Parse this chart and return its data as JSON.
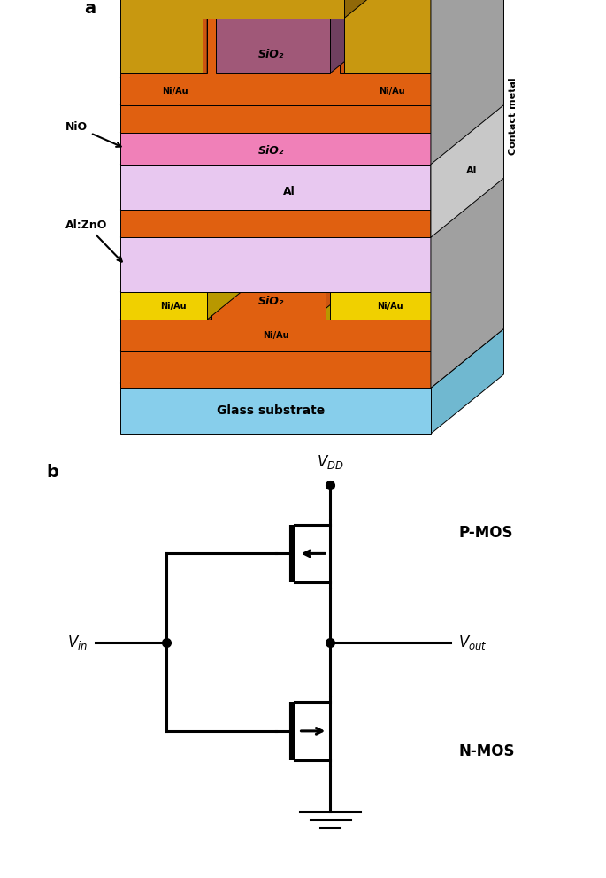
{
  "fig_width": 6.85,
  "fig_height": 9.92,
  "dpi": 100,
  "panel_a_label": "a",
  "panel_b_label": "b",
  "colors": {
    "glass_light": "#87ceeb",
    "glass_mid": "#9fd8e8",
    "glass_dark": "#70b8d0",
    "orange_front": "#e06010",
    "orange_top": "#cc5510",
    "orange_side": "#a04010",
    "yellow_front": "#f0d000",
    "yellow_top": "#d8bb00",
    "yellow_side": "#b89800",
    "lavender_front": "#e8c8f0",
    "lavender_top": "#dbbce8",
    "lavender_side": "#c8a0d8",
    "pink_front": "#f080b8",
    "pink_top": "#e070a8",
    "pink_side": "#c85090",
    "gray_front": "#a0a0a0",
    "gray_top": "#b8b8b8",
    "gray_side": "#787878",
    "silver_front": "#c8c8c8",
    "silver_top": "#d8d8d8",
    "silver_side": "#a0a0a0",
    "gold_front": "#c89810",
    "gold_top": "#b08010",
    "gold_side": "#906808",
    "mauve_front": "#a05878",
    "mauve_top": "#8a4868",
    "mauve_side": "#704060",
    "darkgray_front": "#606060",
    "darkgray_top": "#707070",
    "darkgray_side": "#404040"
  },
  "labels": {
    "NiO": "NiO",
    "AlZnO": "Al:ZnO",
    "SiO2_top": "SiO₂",
    "SiO2_mid": "SiO₂",
    "SiO2_bot": "SiO₂",
    "Al_top": "Al",
    "Al_right": "Al",
    "NiAu_tl": "Ni/Au",
    "NiAu_tr": "Ni/Au",
    "NiAu_ml": "Ni/Au",
    "NiAu_mr": "Ni/Au",
    "NiAu_bot": "Ni/Au",
    "glass": "Glass substrate",
    "contact": "Contact metal"
  },
  "circuit": {
    "VDD": "$V_{DD}$",
    "Vin": "$V_{in}$",
    "Vout": "$V_{out}$",
    "PMOS": "P-MOS",
    "NMOS": "N-MOS"
  }
}
